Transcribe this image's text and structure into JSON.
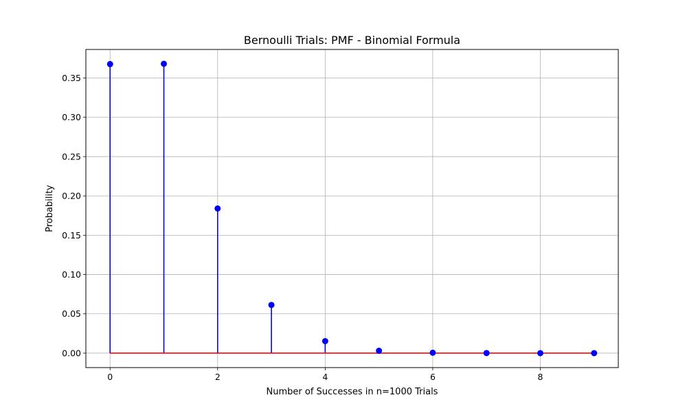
{
  "chart_data": {
    "type": "stem",
    "title": "Bernoulli Trials: PMF - Binomial Formula",
    "xlabel": "Number of Successes in n=1000 Trials",
    "ylabel": "Probability",
    "xlim": [
      -0.45,
      9.45
    ],
    "ylim": [
      -0.0184,
      0.3863
    ],
    "xticks": [
      0,
      2,
      4,
      6,
      8
    ],
    "xtick_labels": [
      "0",
      "2",
      "4",
      "6",
      "8"
    ],
    "yticks": [
      0.0,
      0.05,
      0.1,
      0.15,
      0.2,
      0.25,
      0.3,
      0.35
    ],
    "ytick_labels": [
      "0.00",
      "0.05",
      "0.10",
      "0.15",
      "0.20",
      "0.25",
      "0.30",
      "0.35"
    ],
    "grid": true,
    "x": [
      0,
      1,
      2,
      3,
      4,
      5,
      6,
      7,
      8,
      9
    ],
    "values": [
      0.3677,
      0.3681,
      0.184,
      0.0613,
      0.0153,
      0.003,
      0.0005,
      0.0001,
      0.0,
      0.0
    ],
    "colors": {
      "stem": "#0000ff",
      "marker": "#0000ff",
      "baseline": "#ff0000",
      "grid": "#b0b0b0",
      "axes": "#000000"
    }
  }
}
